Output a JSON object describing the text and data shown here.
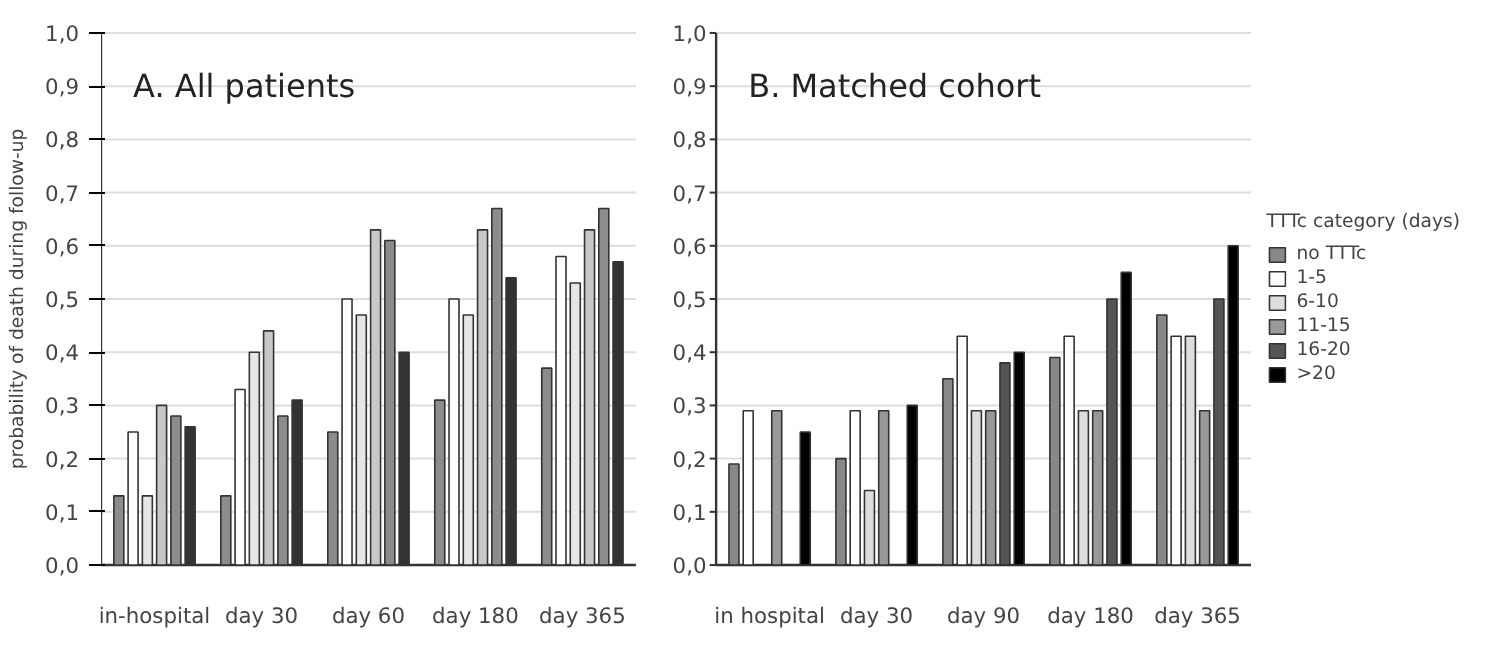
{
  "chart_data": [
    {
      "type": "bar",
      "title": "A. All patients",
      "ylabel": "probability of death during follow-up",
      "categories": [
        "in-hospital",
        "day 30",
        "day 60",
        "day 180",
        "day 365"
      ],
      "series": [
        {
          "color": "#8c8c8c",
          "values": [
            0.13,
            0.13,
            0.25,
            0.31,
            0.37
          ]
        },
        {
          "color": "#ffffff",
          "values": [
            0.25,
            0.33,
            0.5,
            0.5,
            0.58
          ]
        },
        {
          "color": "#e6e6e6",
          "values": [
            0.13,
            0.4,
            0.47,
            0.47,
            0.53
          ]
        },
        {
          "color": "#c8c8c8",
          "values": [
            0.3,
            0.44,
            0.63,
            0.63,
            0.63
          ]
        },
        {
          "color": "#8c8c8c",
          "values": [
            0.28,
            0.28,
            0.61,
            0.67,
            0.67
          ]
        },
        {
          "color": "#333333",
          "values": [
            0.26,
            0.31,
            0.4,
            0.54,
            0.57
          ]
        }
      ],
      "ylim": [
        0,
        1.0
      ],
      "yticks": [
        {
          "value": 0,
          "label": "0,0"
        },
        {
          "value": 0.1,
          "label": "0,1"
        },
        {
          "value": 0.2,
          "label": "0,2"
        },
        {
          "value": 0.3,
          "label": "0,3"
        },
        {
          "value": 0.4,
          "label": "0,4"
        },
        {
          "value": 0.5,
          "label": "0,5"
        },
        {
          "value": 0.6,
          "label": "0,6"
        },
        {
          "value": 0.7,
          "label": "0,7"
        },
        {
          "value": 0.8,
          "label": "0,8"
        },
        {
          "value": 0.9,
          "label": "0,9"
        },
        {
          "value": 1.0,
          "label": "1,0"
        }
      ],
      "grid": "y",
      "legend": false
    },
    {
      "type": "bar",
      "title": "B. Matched cohort",
      "legend_title": "TTTc category (days)",
      "categories": [
        "in hospital",
        "day 30",
        "day 90",
        "day 180",
        "day 365"
      ],
      "series": [
        {
          "name": "no TTTc",
          "color": "#888888",
          "values": [
            0.19,
            0.2,
            0.35,
            0.39,
            0.47
          ]
        },
        {
          "name": "1-5",
          "color": "#ffffff",
          "values": [
            0.29,
            0.29,
            0.43,
            0.43,
            0.43
          ]
        },
        {
          "name": "6-10",
          "color": "#dddddd",
          "values": [
            null,
            0.14,
            0.29,
            0.29,
            0.43
          ]
        },
        {
          "name": "11-15",
          "color": "#999999",
          "values": [
            0.29,
            0.29,
            0.29,
            0.29,
            0.29
          ]
        },
        {
          "name": "16-20",
          "color": "#555555",
          "values": [
            null,
            null,
            0.38,
            0.5,
            0.5
          ]
        },
        {
          "name": ">20",
          "color": "#000000",
          "values": [
            0.25,
            0.3,
            0.4,
            0.55,
            0.6
          ]
        }
      ],
      "ylim": [
        0,
        1.0
      ],
      "yticks": [
        {
          "value": 0,
          "label": "0,0"
        },
        {
          "value": 0.1,
          "label": "0,1"
        },
        {
          "value": 0.2,
          "label": "0,2"
        },
        {
          "value": 0.3,
          "label": "0,3"
        },
        {
          "value": 0.4,
          "label": "0,4"
        },
        {
          "value": 0.5,
          "label": "0,5"
        },
        {
          "value": 0.6,
          "label": "0,6"
        },
        {
          "value": 0.7,
          "label": "0,7"
        },
        {
          "value": 0.8,
          "label": "0,8"
        },
        {
          "value": 0.9,
          "label": "0,9"
        },
        {
          "value": 1.0,
          "label": "1,0"
        }
      ],
      "grid": "y",
      "legend": "right"
    }
  ]
}
